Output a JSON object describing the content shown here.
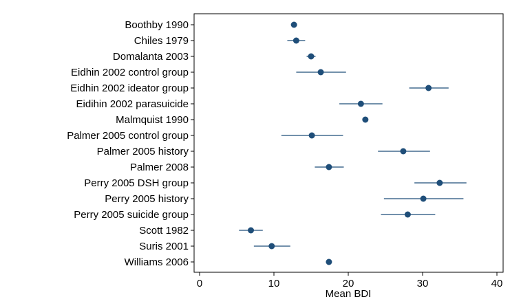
{
  "chart_data": {
    "type": "forest",
    "xlabel": "Mean BDI",
    "xlim": [
      0,
      40
    ],
    "xticks": [
      0,
      10,
      20,
      30,
      40
    ],
    "grid": false,
    "colors": {
      "marker": "#1f4e79",
      "axis": "#000000"
    },
    "categories": [
      "Boothby 1990",
      "Chiles 1979",
      "Domalanta 2003",
      "Eidhin 2002 control group",
      "Eidhin 2002 ideator group",
      "Eidihin 2002 parasuicide",
      "Malmquist 1990",
      "Palmer 2005 control group",
      "Palmer 2005 history",
      "Palmer 2008",
      "Perry 2005 DSH group",
      "Perry 2005 history",
      "Perry 2005 suicide group",
      "Scott 1982",
      "Suris 2001",
      "Williams 2006"
    ],
    "series": [
      {
        "mean": [
          12.7,
          13.0,
          15.0,
          16.3,
          30.8,
          21.7,
          22.3,
          15.1,
          27.4,
          17.4,
          32.3,
          30.1,
          28.0,
          6.9,
          9.7,
          17.4
        ],
        "lower": [
          12.3,
          11.8,
          14.4,
          13.0,
          28.2,
          18.8,
          22.0,
          11.0,
          24.0,
          15.5,
          28.9,
          24.8,
          24.4,
          5.3,
          7.3,
          17.1
        ],
        "upper": [
          13.1,
          14.2,
          15.6,
          19.7,
          33.5,
          24.6,
          22.6,
          19.3,
          31.0,
          19.4,
          35.9,
          35.5,
          31.7,
          8.5,
          12.2,
          17.7
        ]
      }
    ]
  }
}
